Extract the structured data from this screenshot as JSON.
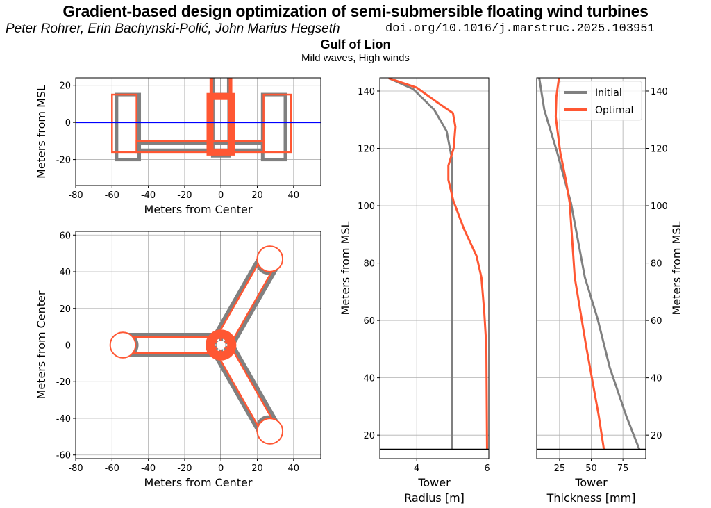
{
  "header": {
    "title": "Gradient-based design optimization of semi-submersible floating wind turbines",
    "authors": "Peter Rohrer, Erin Bachynski-Polić, John Marius Hegseth",
    "doi": "doi.org/10.1016/j.marstruc.2025.103951",
    "location": "Gulf of Lion",
    "conditions": "Mild waves, High winds"
  },
  "colors": {
    "initial": "#808080",
    "optimal": "#ff5733",
    "msl": "#0000ff"
  },
  "chart_data": [
    {
      "type": "line",
      "panel": "side-view",
      "xlabel": "Meters from Center",
      "ylabel": "Meters from MSL",
      "xlim": [
        -80,
        55
      ],
      "ylim": [
        -34,
        24
      ],
      "xticks": [
        -80,
        -60,
        -40,
        -20,
        0,
        20,
        40
      ],
      "yticks": [
        -20,
        0,
        20
      ],
      "grid": true,
      "msl_line": 0,
      "initial_rects": [
        [
          -57.5,
          -20,
          -45,
          15
        ],
        [
          23,
          -20,
          35.5,
          15
        ],
        [
          -45,
          -15,
          23,
          -11
        ],
        [
          -4.5,
          -18,
          4.5,
          15
        ]
      ],
      "optimal_rects": [
        [
          -60,
          -16,
          -46.5,
          15
        ],
        [
          23.5,
          -16,
          38.5,
          15
        ],
        [
          -46.5,
          -16,
          23.5,
          -10
        ],
        [
          -6,
          -16,
          6,
          14
        ]
      ],
      "initial_tower": [
        -4.3,
        4.3
      ],
      "optimal_tower": [
        -5.3,
        5.3
      ]
    },
    {
      "type": "line",
      "panel": "plan-view",
      "xlabel": "Meters from Center",
      "ylabel": "Meters from Center",
      "xlim": [
        -80,
        55
      ],
      "ylim": [
        -62,
        62
      ],
      "xticks": [
        -80,
        -60,
        -40,
        -20,
        0,
        20,
        40
      ],
      "yticks": [
        -60,
        -40,
        -20,
        0,
        20,
        40,
        60
      ],
      "grid": true,
      "initial_columns": [
        [
          -52,
          0
        ],
        [
          26,
          45
        ],
        [
          26,
          -45
        ]
      ],
      "optimal_columns": [
        [
          -54,
          0
        ],
        [
          27,
          47
        ],
        [
          27,
          -47
        ]
      ],
      "optimal_column_radius": 7,
      "initial_column_radius": 5.5,
      "center_column_radius": 6
    },
    {
      "type": "line",
      "panel": "tower-radius",
      "xlabel": "Tower\nRadius [m]",
      "ylabel": "Meters from MSL",
      "xlim": [
        2.95,
        6.05
      ],
      "ylim": [
        11.8,
        144.6
      ],
      "xticks": [
        4,
        6
      ],
      "yticks": [
        20,
        40,
        60,
        80,
        100,
        120,
        140
      ],
      "grid": true,
      "base_line": 15,
      "series": [
        {
          "name": "Initial",
          "x": [
            3.2,
            3.9,
            4.5,
            4.85,
            5.0,
            5.0
          ],
          "y": [
            144.5,
            140.7,
            133.4,
            126,
            116.4,
            15
          ]
        },
        {
          "name": "Optimal",
          "x": [
            3.2,
            4.0,
            4.6,
            5.03,
            5.1,
            5.05,
            4.9,
            4.9,
            5.04,
            5.34,
            5.7,
            5.84,
            5.92,
            5.98,
            6.0
          ],
          "y": [
            144.5,
            141.2,
            135.9,
            132.3,
            127.5,
            120,
            114,
            109,
            101.8,
            92,
            82.5,
            75,
            63,
            51,
            15
          ]
        }
      ]
    },
    {
      "type": "line",
      "panel": "tower-thickness",
      "xlabel": "Tower\nThickness [mm]",
      "ylabel": "Meters from MSL",
      "xlim": [
        7,
        93
      ],
      "ylim": [
        11.8,
        144.6
      ],
      "xticks": [
        25,
        50,
        75
      ],
      "yticks": [
        20,
        40,
        60,
        80,
        100,
        120,
        140
      ],
      "grid": true,
      "base_line": 15,
      "legend": "top-right",
      "series": [
        {
          "name": "Initial",
          "x": [
            9,
            13,
            23,
            34,
            45,
            55,
            64.6,
            77.7,
            88
          ],
          "y": [
            144.5,
            133.4,
            118.8,
            101,
            75,
            60.6,
            43.6,
            26.6,
            15
          ]
        },
        {
          "name": "Optimal",
          "x": [
            24.5,
            22.5,
            22,
            25.5,
            30,
            33,
            37,
            46,
            56,
            60
          ],
          "y": [
            144.5,
            138,
            131,
            118.8,
            109,
            101,
            75,
            51,
            26.6,
            15
          ]
        }
      ]
    }
  ]
}
